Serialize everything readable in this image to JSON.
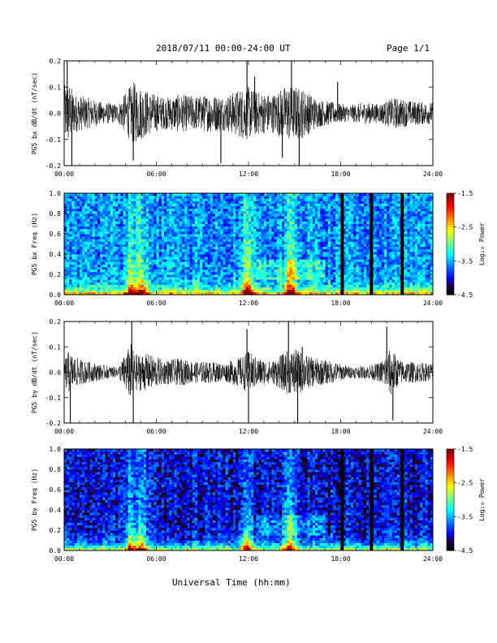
{
  "header": {
    "title": "2018/07/11  00:00-24:00 UT",
    "page": "Page 1/1"
  },
  "xaxis_title": "Universal Time (hh:mm)",
  "time_ticks": [
    "00:00",
    "06:00",
    "12:00",
    "18:00",
    "24:00"
  ],
  "colorbar": {
    "label": "Log₁₀ Power",
    "ticks": [
      "-1.5",
      "-2.5",
      "-3.5",
      "-4.5"
    ],
    "range": [
      -4.5,
      -1.5
    ]
  },
  "chart_data": [
    {
      "type": "line",
      "ylabel": "PG5 bx dB/dt (nT/sec)",
      "xlim": [
        0,
        24
      ],
      "ylim": [
        -0.2,
        0.2
      ],
      "yticks": [
        "0.2",
        "0.1",
        "0.0",
        "-0.1",
        "-0.2"
      ],
      "activity_profile": [
        [
          0,
          0.9
        ],
        [
          0.3,
          1.0
        ],
        [
          0.7,
          0.6
        ],
        [
          1.5,
          0.5
        ],
        [
          2.5,
          0.35
        ],
        [
          3.5,
          0.3
        ],
        [
          4.5,
          1.0
        ],
        [
          5.5,
          0.7
        ],
        [
          6.5,
          0.5
        ],
        [
          7.5,
          0.6
        ],
        [
          8.5,
          0.55
        ],
        [
          9.5,
          0.6
        ],
        [
          10.5,
          0.55
        ],
        [
          11.5,
          0.8
        ],
        [
          12,
          0.85
        ],
        [
          12.5,
          0.7
        ],
        [
          13.5,
          0.6
        ],
        [
          14.5,
          0.9
        ],
        [
          15.5,
          0.8
        ],
        [
          16.5,
          0.45
        ],
        [
          17.5,
          0.35
        ],
        [
          18.5,
          0.25
        ],
        [
          19.5,
          0.35
        ],
        [
          20.5,
          0.3
        ],
        [
          21.5,
          0.5
        ],
        [
          22.5,
          0.4
        ],
        [
          23.5,
          0.35
        ],
        [
          24,
          0.35
        ]
      ],
      "spikes": [
        [
          0.2,
          0.2
        ],
        [
          0.5,
          -0.2
        ],
        [
          4.5,
          -0.18
        ],
        [
          10.2,
          -0.19
        ],
        [
          11.9,
          0.2
        ],
        [
          12.4,
          0.14
        ],
        [
          14.2,
          -0.17
        ],
        [
          14.8,
          0.2
        ],
        [
          15.3,
          -0.2
        ],
        [
          17.8,
          0.12
        ]
      ]
    },
    {
      "type": "heatmap",
      "ylabel": "PG5 bx Freq (Hz)",
      "xlim": [
        0,
        24
      ],
      "ylim": [
        0,
        1.0
      ],
      "yticks": [
        "1.0",
        "0.8",
        "0.6",
        "0.4",
        "0.2",
        "0.0"
      ],
      "zlim": [
        -4.5,
        -1.5
      ],
      "base_level": -3.6,
      "bright_times": [
        4.4,
        5.0,
        11.9,
        14.7
      ],
      "data_gaps": [
        18.1,
        20.0,
        22.0
      ]
    },
    {
      "type": "line",
      "ylabel": "PG5 by dB/dt (nT/sec)",
      "xlim": [
        0,
        24
      ],
      "ylim": [
        -0.2,
        0.2
      ],
      "yticks": [
        "0.2",
        "0.1",
        "0.0",
        "-0.1",
        "-0.2"
      ],
      "activity_profile": [
        [
          0,
          0.45
        ],
        [
          0.3,
          0.7
        ],
        [
          0.7,
          0.5
        ],
        [
          1.5,
          0.35
        ],
        [
          2.5,
          0.25
        ],
        [
          3.5,
          0.15
        ],
        [
          4.4,
          1.0
        ],
        [
          4.6,
          0.6
        ],
        [
          5.5,
          0.6
        ],
        [
          6.5,
          0.4
        ],
        [
          7.5,
          0.45
        ],
        [
          8.5,
          0.35
        ],
        [
          9.5,
          0.35
        ],
        [
          10.5,
          0.3
        ],
        [
          11.5,
          0.5
        ],
        [
          12,
          0.7
        ],
        [
          12.5,
          0.5
        ],
        [
          13.5,
          0.35
        ],
        [
          14.5,
          0.7
        ],
        [
          15.2,
          0.75
        ],
        [
          16,
          0.5
        ],
        [
          16.5,
          0.45
        ],
        [
          17.5,
          0.35
        ],
        [
          18.5,
          0.2
        ],
        [
          19.5,
          0.2
        ],
        [
          20.5,
          0.3
        ],
        [
          21.3,
          0.8
        ],
        [
          21.8,
          0.4
        ],
        [
          22.5,
          0.35
        ],
        [
          23.5,
          0.3
        ],
        [
          24,
          0.3
        ]
      ],
      "spikes": [
        [
          0.4,
          -0.2
        ],
        [
          4.4,
          0.2
        ],
        [
          4.5,
          -0.2
        ],
        [
          11.9,
          0.17
        ],
        [
          12.0,
          -0.2
        ],
        [
          14.6,
          0.2
        ],
        [
          15.2,
          -0.2
        ],
        [
          15.5,
          0.1
        ],
        [
          21.4,
          -0.19
        ],
        [
          21.0,
          0.18
        ]
      ]
    },
    {
      "type": "heatmap",
      "ylabel": "PG5 by Freq (Hz)",
      "xlim": [
        0,
        24
      ],
      "ylim": [
        0,
        1.0
      ],
      "yticks": [
        "1.0",
        "0.8",
        "0.6",
        "0.4",
        "0.2",
        "0.0"
      ],
      "zlim": [
        -4.5,
        -1.5
      ],
      "base_level": -4.0,
      "bright_times": [
        4.4,
        5.0,
        11.9,
        14.7
      ],
      "data_gaps": [
        18.1,
        20.0,
        22.0
      ]
    }
  ]
}
